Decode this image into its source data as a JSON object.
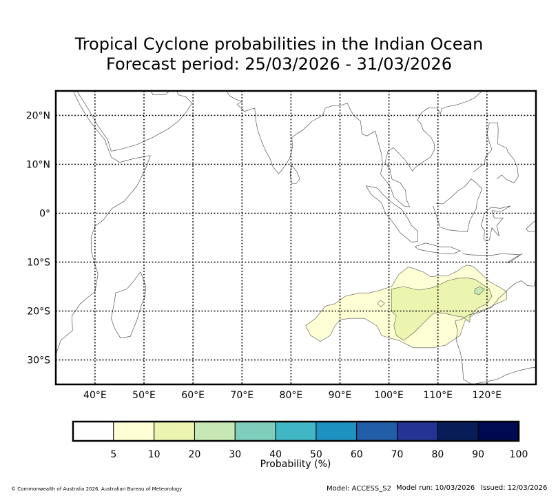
{
  "title": {
    "line1": "Tropical Cyclone probabilities in the Indian Ocean",
    "line2": "Forecast period: 25/03/2026 - 31/03/2026"
  },
  "map": {
    "lon_range": [
      32,
      130
    ],
    "lat_range": [
      -35,
      25
    ],
    "lon_ticks": [
      40,
      50,
      60,
      70,
      80,
      90,
      100,
      110,
      120
    ],
    "lon_tick_labels": [
      "40°E",
      "50°E",
      "60°E",
      "70°E",
      "80°E",
      "90°E",
      "100°E",
      "110°E",
      "120°E"
    ],
    "lat_ticks": [
      20,
      10,
      0,
      -10,
      -20,
      -30
    ],
    "lat_tick_labels": [
      "20°N",
      "10°N",
      "0°",
      "10°S",
      "20°S",
      "30°S"
    ],
    "grid": "dotted",
    "probability_regions": [
      {
        "band": "5-10",
        "color": "#ffffd5",
        "polygon": [
          [
            85,
            -21.5
          ],
          [
            87,
            -19
          ],
          [
            89,
            -18.5
          ],
          [
            91,
            -17
          ],
          [
            94,
            -16.3
          ],
          [
            96,
            -16.3
          ],
          [
            98,
            -15.8
          ],
          [
            100.5,
            -15
          ],
          [
            102,
            -12.5
          ],
          [
            104,
            -11
          ],
          [
            105,
            -11.3
          ],
          [
            107,
            -12
          ],
          [
            108.5,
            -13
          ],
          [
            110,
            -12.8
          ],
          [
            112,
            -12.8
          ],
          [
            114,
            -11.8
          ],
          [
            115,
            -11
          ],
          [
            116,
            -10.6
          ],
          [
            117,
            -10.8
          ],
          [
            118,
            -11.6
          ],
          [
            119.5,
            -13
          ],
          [
            120.5,
            -14
          ],
          [
            122,
            -14.8
          ],
          [
            124,
            -16
          ],
          [
            124,
            -17.6
          ],
          [
            122,
            -18.5
          ],
          [
            120,
            -19.5
          ],
          [
            118,
            -20.2
          ],
          [
            115.5,
            -22
          ],
          [
            114.5,
            -25
          ],
          [
            111.5,
            -27
          ],
          [
            109,
            -27.5
          ],
          [
            107,
            -27.5
          ],
          [
            105,
            -27.5
          ],
          [
            102,
            -26
          ],
          [
            100,
            -25.5
          ],
          [
            98.5,
            -25
          ],
          [
            97.5,
            -23
          ],
          [
            95,
            -21.5
          ],
          [
            92,
            -21.5
          ],
          [
            90,
            -21.8
          ],
          [
            89,
            -23
          ],
          [
            88,
            -25
          ],
          [
            86,
            -26.2
          ],
          [
            84,
            -25
          ],
          [
            83,
            -23
          ]
        ]
      },
      {
        "band": "10-20",
        "color": "#ebf5b0",
        "polygon": [
          [
            100.5,
            -15.5
          ],
          [
            103,
            -15
          ],
          [
            106,
            -15.7
          ],
          [
            109,
            -15.2
          ],
          [
            112,
            -13.8
          ],
          [
            114,
            -13.3
          ],
          [
            116,
            -13.2
          ],
          [
            117.5,
            -13.5
          ],
          [
            119,
            -14.5
          ],
          [
            120.5,
            -15.5
          ],
          [
            121,
            -17
          ],
          [
            120,
            -18.5
          ],
          [
            118,
            -19.5
          ],
          [
            116.5,
            -21
          ],
          [
            116.5,
            -22.3
          ],
          [
            115,
            -21.2
          ],
          [
            113.5,
            -21
          ],
          [
            111.5,
            -20.5
          ],
          [
            110,
            -20.3
          ],
          [
            109,
            -20.5
          ],
          [
            107,
            -22.5
          ],
          [
            105,
            -24.5
          ],
          [
            103,
            -26
          ],
          [
            101.5,
            -25
          ],
          [
            101,
            -23
          ],
          [
            101.5,
            -21
          ],
          [
            100.5,
            -20
          ]
        ]
      },
      {
        "band": "20-30",
        "color": "#c7e7b4",
        "polygon": [
          [
            117.5,
            -15.5
          ],
          [
            118.5,
            -15
          ],
          [
            119.5,
            -15.5
          ],
          [
            118.5,
            -16.6
          ],
          [
            117.5,
            -16.5
          ]
        ]
      },
      {
        "band": "5-10",
        "color": "#ffffd5",
        "polygon": [
          [
            98.3,
            -17.8
          ],
          [
            99.1,
            -18.4
          ],
          [
            98.4,
            -19.2
          ],
          [
            97.6,
            -18.5
          ]
        ]
      }
    ]
  },
  "colorbar": {
    "colors": [
      "#ffffff",
      "#ffffd5",
      "#ebf5b0",
      "#c7e7b4",
      "#7fcdbb",
      "#41b6c4",
      "#1d91c0",
      "#225ea8",
      "#253494",
      "#081d58",
      "#000a50"
    ],
    "tick_labels": [
      "5",
      "10",
      "20",
      "30",
      "40",
      "50",
      "60",
      "70",
      "80",
      "90",
      "100"
    ],
    "label": "Probability (%)"
  },
  "footer": {
    "copyright": "© Commonwealth of Australia 2026, Australian Bureau of Meteorology",
    "model": "Model: ACCESS_S2",
    "model_run": "Model run: 10/03/2026",
    "issued": "Issued: 12/03/2026"
  }
}
